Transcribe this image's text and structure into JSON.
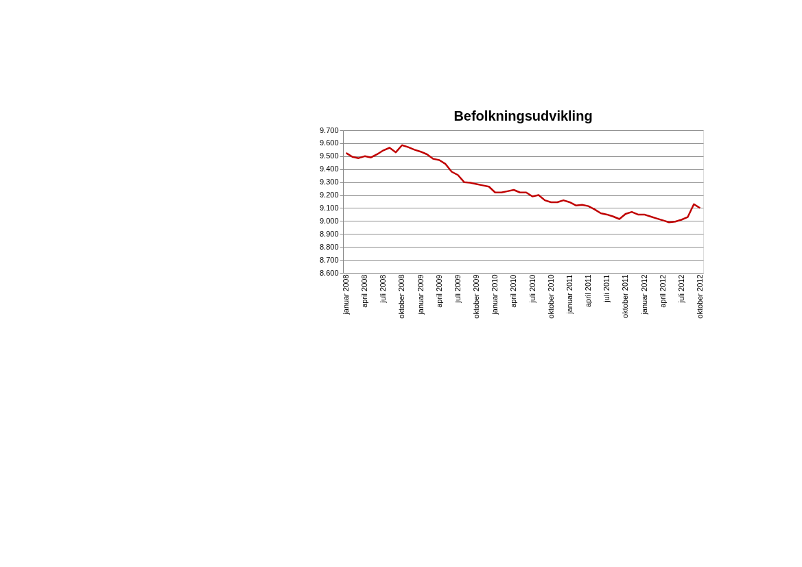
{
  "chart_data": {
    "type": "line",
    "title": "Befolkningsudvikling",
    "categories": [
      "januar 2008",
      null,
      null,
      "april 2008",
      null,
      null,
      "juli 2008",
      null,
      null,
      "oktober 2008",
      null,
      null,
      "januar 2009",
      null,
      null,
      "april 2009",
      null,
      null,
      "juli 2009",
      null,
      null,
      "oktober 2009",
      null,
      null,
      "januar 2010",
      null,
      null,
      "april 2010",
      null,
      null,
      "juli 2010",
      null,
      null,
      "oktober 2010",
      null,
      null,
      "januar 2011",
      null,
      null,
      "april 2011",
      null,
      null,
      "juli 2011",
      null,
      null,
      "oktober 2011",
      null,
      null,
      "januar 2012",
      null,
      null,
      "april 2012",
      null,
      null,
      "juli 2012",
      null,
      null,
      "oktober 2012"
    ],
    "series": [
      {
        "color": "#c00000",
        "values": [
          9525,
          9495,
          9485,
          9500,
          9490,
          9515,
          9545,
          9565,
          9530,
          9585,
          9570,
          9550,
          9535,
          9515,
          9480,
          9470,
          9440,
          9380,
          9355,
          9300,
          9295,
          9285,
          9275,
          9265,
          9220,
          9220,
          9230,
          9240,
          9220,
          9220,
          9190,
          9200,
          9160,
          9145,
          9145,
          9160,
          9145,
          9120,
          9125,
          9115,
          9090,
          9060,
          9050,
          9035,
          9015,
          9055,
          9070,
          9050,
          9050,
          9035,
          9020,
          9005,
          8990,
          8995,
          9010,
          9030,
          9130,
          9100
        ]
      }
    ],
    "ylim": [
      8600,
      9700
    ],
    "yticks": [
      {
        "value": 8600,
        "label": "8.600"
      },
      {
        "value": 8700,
        "label": "8.700"
      },
      {
        "value": 8800,
        "label": "8.800"
      },
      {
        "value": 8900,
        "label": "8.900"
      },
      {
        "value": 9000,
        "label": "9.000"
      },
      {
        "value": 9100,
        "label": "9.100"
      },
      {
        "value": 9200,
        "label": "9.200"
      },
      {
        "value": 9300,
        "label": "9.300"
      },
      {
        "value": 9400,
        "label": "9.400"
      },
      {
        "value": 9500,
        "label": "9.500"
      },
      {
        "value": 9600,
        "label": "9.600"
      },
      {
        "value": 9700,
        "label": "9.700"
      }
    ],
    "grid": "y",
    "marker": "none",
    "line_style": "solid"
  }
}
